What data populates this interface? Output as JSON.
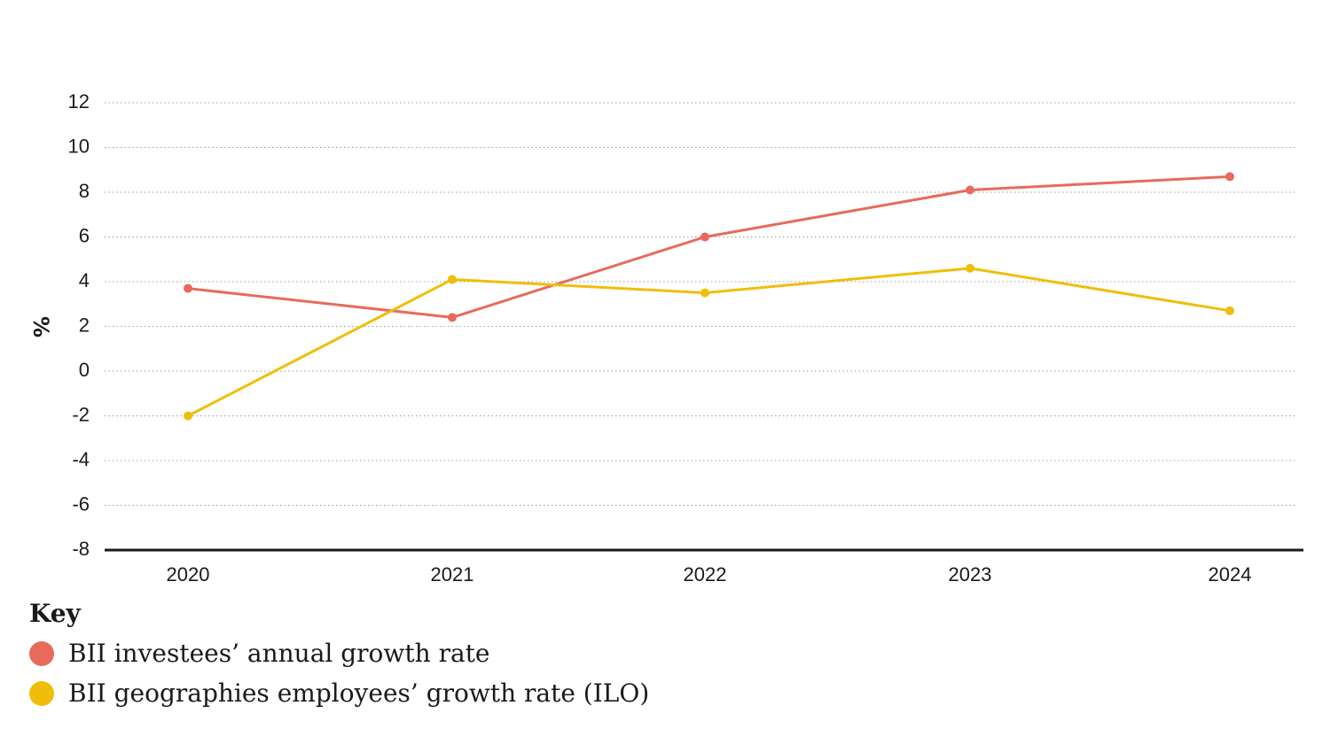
{
  "chart_data": {
    "type": "line",
    "categories": [
      "2020",
      "2021",
      "2022",
      "2023",
      "2024"
    ],
    "series": [
      {
        "name": "BII investees’ annual growth rate",
        "color": "#e86a5c",
        "values": [
          3.7,
          2.4,
          6.0,
          8.1,
          8.7
        ]
      },
      {
        "name": "BII geographies employees’ growth rate (ILO)",
        "color": "#f0be0a",
        "values": [
          -2.0,
          4.1,
          3.5,
          4.6,
          2.7
        ]
      }
    ],
    "ylabel": "%",
    "ylim": [
      -8,
      12
    ],
    "yticks": [
      12,
      10,
      8,
      6,
      4,
      2,
      0,
      -2,
      -4,
      -6,
      -8
    ],
    "ytick_labels": [
      "12",
      "10",
      "8",
      "6",
      "4",
      "2",
      "0",
      "-2",
      "-4",
      "-6",
      "-8"
    ],
    "grid": true,
    "legend": {
      "title": "Key",
      "placement": "bottom-left"
    }
  }
}
